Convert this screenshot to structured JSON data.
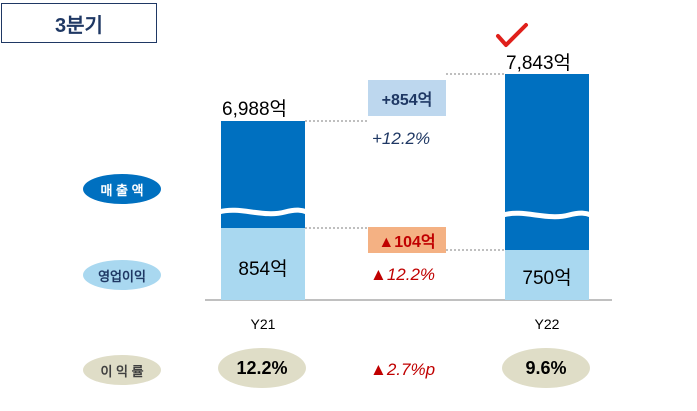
{
  "header": {
    "title": "3분기"
  },
  "row_labels": {
    "revenue": "매 출 액",
    "operating_profit": "영업이익",
    "margin": "이 익 률"
  },
  "chart_data": {
    "type": "bar",
    "categories": [
      "Y21",
      "Y22"
    ],
    "series": [
      {
        "name": "매 출 액",
        "values": [
          6988,
          7843
        ],
        "labels": [
          "6,988억",
          "7,843억"
        ]
      },
      {
        "name": "영업이익",
        "values": [
          854,
          750
        ],
        "labels": [
          "854억",
          "750억"
        ]
      }
    ],
    "axis_break": true,
    "colors": {
      "revenue": "#0070c0",
      "operating_profit": "#a9d8f0"
    },
    "margin": [
      "12.2%",
      "9.6%"
    ],
    "changes": {
      "revenue_amount": "+854억",
      "revenue_rate": "+12.2%",
      "profit_amount": "▲104억",
      "profit_rate": "▲12.2%",
      "margin_change": "▲2.7%p"
    },
    "highlight": "Y22"
  }
}
